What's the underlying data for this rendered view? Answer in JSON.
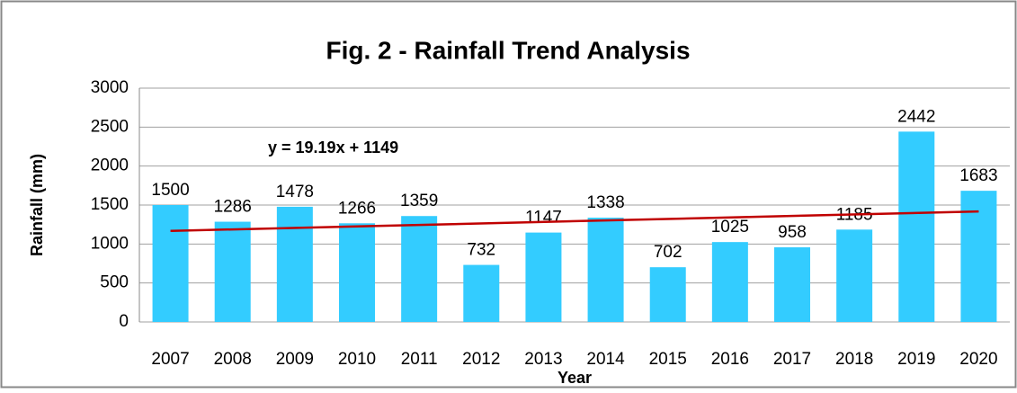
{
  "chart_data": {
    "type": "bar",
    "title": "Fig. 2 - Rainfall Trend Analysis",
    "xlabel": "Year",
    "ylabel": "Rainfall (mm)",
    "categories": [
      "2007",
      "2008",
      "2009",
      "2010",
      "2011",
      "2012",
      "2013",
      "2014",
      "2015",
      "2016",
      "2017",
      "2018",
      "2019",
      "2020"
    ],
    "values": [
      1500,
      1286,
      1478,
      1266,
      1359,
      732,
      1147,
      1338,
      702,
      1025,
      958,
      1185,
      2442,
      1683
    ],
    "color": "#33ccff",
    "ylim": [
      0,
      3000
    ],
    "yticks": [
      0,
      500,
      1000,
      1500,
      2000,
      2500,
      3000
    ],
    "grid": true,
    "trendline": {
      "label": "y = 19.19x + 1149",
      "slope": 19.19,
      "intercept": 1149,
      "color": "#c00000"
    }
  }
}
